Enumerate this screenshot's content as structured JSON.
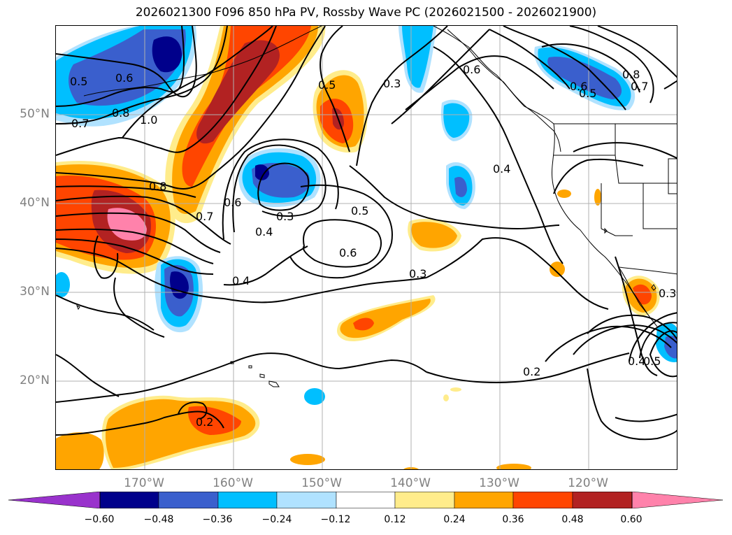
{
  "title": "2026021300 F096 850 hPa PV, Rossby Wave PC (2026021500 - 2026021900)",
  "lat_labels": [
    "50°N",
    "40°N",
    "30°N",
    "20°N"
  ],
  "lon_labels": [
    "170°W",
    "160°W",
    "150°W",
    "140°W",
    "130°W",
    "120°W"
  ],
  "contour_labels": [
    "0.5",
    "0.6",
    "0.7",
    "0.8",
    "1.0",
    "0.8",
    "0.7",
    "0.6",
    "0.4",
    "0.3",
    "0.4",
    "0.5",
    "0.6",
    "0.3",
    "0.5",
    "0.3",
    "0.4",
    "0.2",
    "0.3",
    "0.4",
    "0.5",
    "0.2",
    "0.6",
    "0.5",
    "0.7",
    "0.8",
    "0.6"
  ],
  "colorbar": {
    "ticks": [
      "−0.60",
      "−0.48",
      "−0.36",
      "−0.24",
      "−0.12",
      "0.12",
      "0.24",
      "0.36",
      "0.48",
      "0.60"
    ],
    "colors": [
      "#9932cc",
      "#00008b",
      "#3a5fcd",
      "#00bfff",
      "#b0e2ff",
      "#ffffff",
      "#ffec8b",
      "#ffa500",
      "#ff4500",
      "#b22222",
      "#ff82ab"
    ]
  }
}
